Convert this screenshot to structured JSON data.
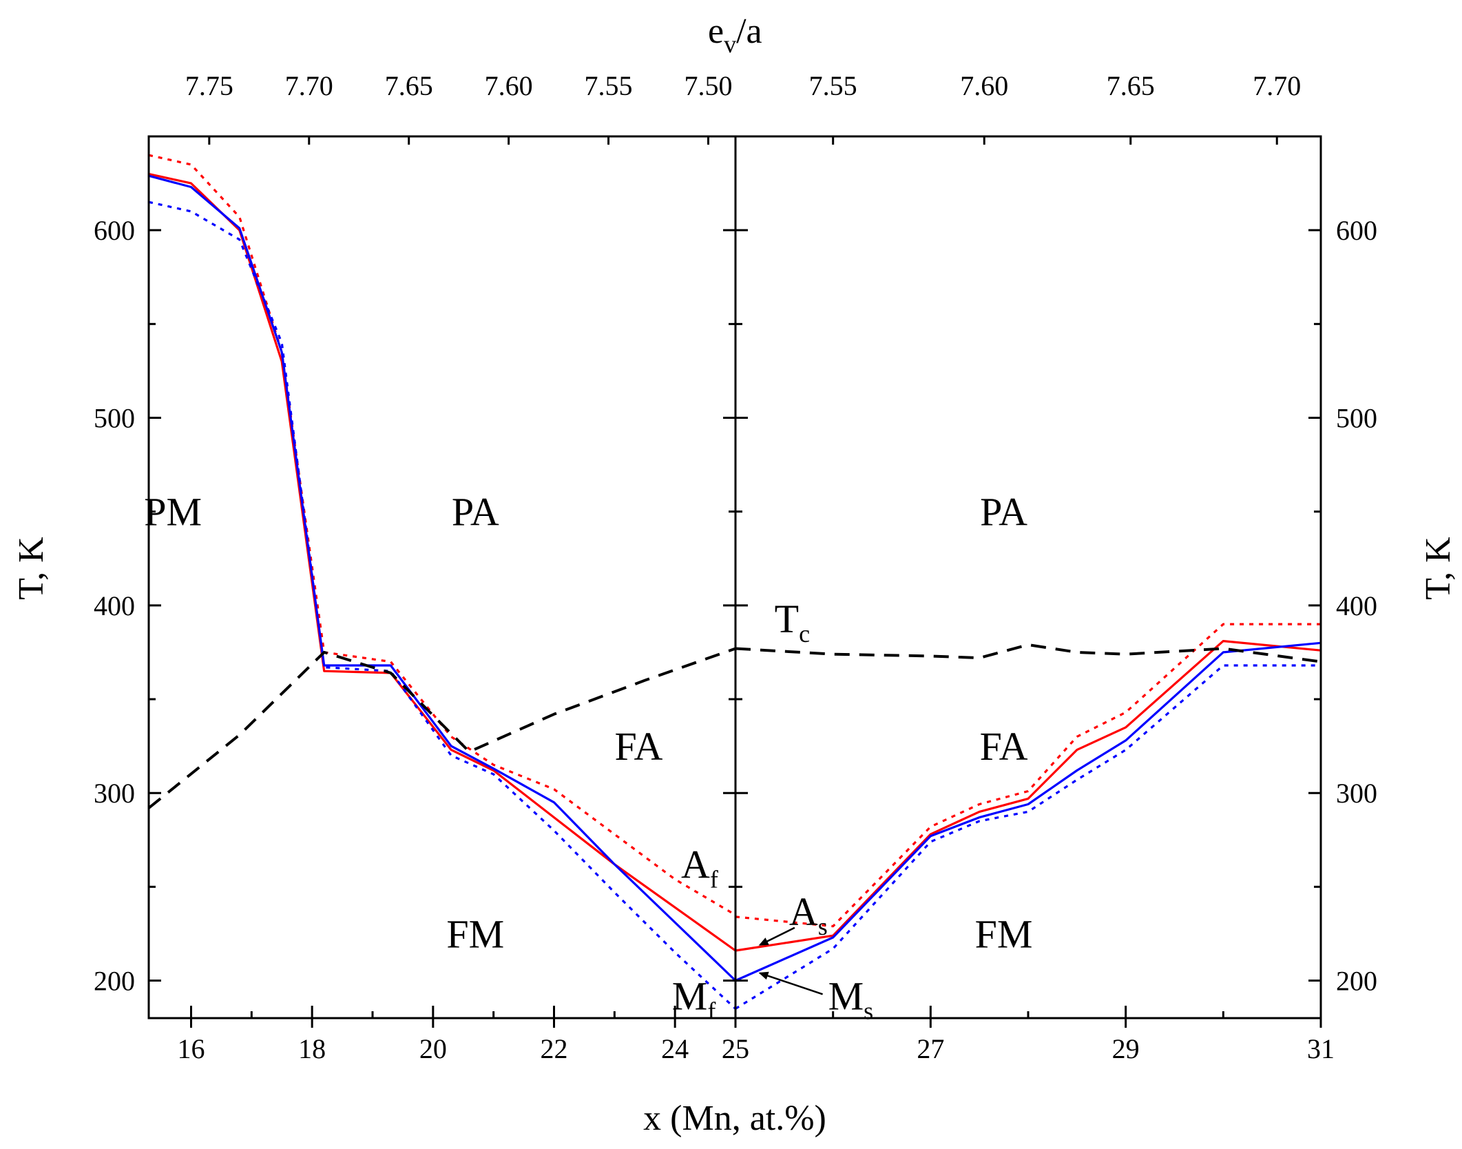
{
  "chart_data": {
    "type": "line",
    "title": "",
    "xlabel": "x (Mn, at.%)",
    "ylabel_left": "T, K",
    "ylabel_right": "T, K",
    "top_axis_label": {
      "base": "e",
      "sub": "v",
      "suffix": "/a"
    },
    "ylim": [
      180,
      650
    ],
    "grid": false,
    "legend": "none",
    "panels": [
      {
        "id": "left",
        "xlim": [
          15.3,
          25
        ],
        "x_ticks": [
          16,
          18,
          20,
          22,
          24,
          25
        ],
        "x_minor_ticks": [
          17,
          19,
          21,
          23
        ],
        "top_ticks": [
          {
            "x": 16.3,
            "label": "7.75"
          },
          {
            "x": 17.95,
            "label": "7.70"
          },
          {
            "x": 19.6,
            "label": "7.65"
          },
          {
            "x": 21.25,
            "label": "7.60"
          },
          {
            "x": 22.9,
            "label": "7.55"
          },
          {
            "x": 24.55,
            "label": "7.50"
          }
        ],
        "series": [
          {
            "name": "Af",
            "color": "#ff0000",
            "dash": "dot",
            "x": [
              15.3,
              16.0,
              16.8,
              17.5,
              18.2,
              19.3,
              20.3,
              21.0,
              22.0,
              23.0,
              24.0,
              25.0
            ],
            "y": [
              640,
              635,
              607,
              535,
              375,
              370,
              330,
              315,
              302,
              278,
              254,
              235
            ]
          },
          {
            "name": "As",
            "color": "#ff0000",
            "dash": "solid",
            "x": [
              15.3,
              16.0,
              16.8,
              17.5,
              18.2,
              19.3,
              20.3,
              21.0,
              22.0,
              23.0,
              24.0,
              25.0
            ],
            "y": [
              630,
              625,
              600,
              530,
              365,
              364,
              323,
              312,
              287,
              262,
              239,
              216
            ]
          },
          {
            "name": "Ms",
            "color": "#0000ff",
            "dash": "solid",
            "x": [
              15.3,
              16.0,
              16.8,
              17.5,
              18.2,
              19.3,
              20.3,
              21.0,
              22.0,
              23.0,
              24.0,
              25.0
            ],
            "y": [
              629,
              623,
              601,
              535,
              368,
              368,
              325,
              313,
              295,
              262,
              231,
              200
            ]
          },
          {
            "name": "Mf",
            "color": "#0000ff",
            "dash": "dot",
            "x": [
              15.3,
              16.0,
              16.8,
              17.5,
              18.2,
              19.3,
              20.3,
              21.0,
              22.0,
              23.0,
              24.0,
              25.0
            ],
            "y": [
              615,
              610,
              595,
              540,
              367,
              365,
              320,
              310,
              280,
              247,
              215,
              185
            ]
          },
          {
            "name": "Tc",
            "color": "#000000",
            "dash": "dash",
            "x": [
              15.3,
              16.8,
              18.2,
              19.3,
              20.6,
              22.0,
              23.5,
              25.0
            ],
            "y": [
              292,
              331,
              375,
              364,
              322,
              342,
              360,
              377
            ]
          }
        ],
        "labels": [
          {
            "text": "PM",
            "x": 15.7,
            "y": 450
          },
          {
            "text": "PA",
            "x": 20.7,
            "y": 450
          },
          {
            "text": "FA",
            "x": 23.4,
            "y": 325
          },
          {
            "text": "FM",
            "x": 20.7,
            "y": 225
          }
        ]
      },
      {
        "id": "right",
        "xlim": [
          25,
          31
        ],
        "x_ticks": [
          25,
          27,
          29,
          31
        ],
        "x_minor_ticks": [
          26,
          28,
          30
        ],
        "top_ticks": [
          {
            "x": 26.0,
            "label": "7.55"
          },
          {
            "x": 27.55,
            "label": "7.60"
          },
          {
            "x": 29.05,
            "label": "7.65"
          },
          {
            "x": 30.55,
            "label": "7.70"
          }
        ],
        "series": [
          {
            "name": "Af",
            "color": "#ff0000",
            "dash": "dot",
            "x": [
              25.0,
              26.0,
              27.0,
              27.5,
              28.0,
              28.5,
              29.0,
              30.0,
              31.0
            ],
            "y": [
              234,
              229,
              282,
              294,
              301,
              330,
              343,
              390,
              390
            ]
          },
          {
            "name": "As",
            "color": "#ff0000",
            "dash": "solid",
            "x": [
              25.0,
              26.0,
              27.0,
              27.5,
              28.0,
              28.5,
              29.0,
              30.0,
              31.0
            ],
            "y": [
              216,
              224,
              278,
              290,
              297,
              323,
              335,
              381,
              376
            ]
          },
          {
            "name": "Ms",
            "color": "#0000ff",
            "dash": "solid",
            "x": [
              25.0,
              26.0,
              27.0,
              27.5,
              28.0,
              28.5,
              29.0,
              30.0,
              31.0
            ],
            "y": [
              200,
              223,
              277,
              287,
              294,
              312,
              328,
              375,
              380
            ]
          },
          {
            "name": "Mf",
            "color": "#0000ff",
            "dash": "dot",
            "x": [
              25.0,
              26.0,
              27.0,
              27.5,
              28.0,
              28.5,
              29.0,
              30.0,
              31.0
            ],
            "y": [
              185,
              217,
              274,
              285,
              290,
              307,
              323,
              368,
              368
            ]
          },
          {
            "name": "Tc",
            "color": "#000000",
            "dash": "dash",
            "x": [
              25.0,
              26.0,
              27.0,
              27.5,
              28.0,
              28.5,
              29.0,
              30.0,
              31.0
            ],
            "y": [
              377,
              374,
              373,
              372,
              379,
              375,
              374,
              377,
              370
            ]
          }
        ],
        "labels": [
          {
            "text": "PA",
            "x": 27.75,
            "y": 450
          },
          {
            "text": "FA",
            "x": 27.75,
            "y": 325
          },
          {
            "text": "FM",
            "x": 27.75,
            "y": 225
          }
        ]
      }
    ],
    "y_ticks": [
      200,
      300,
      400,
      500,
      600
    ],
    "y_minor_ticks": [
      250,
      350,
      450,
      550,
      650
    ],
    "curve_labels": [
      {
        "panel": "left",
        "base": "A",
        "sub": "f",
        "x": 24.1,
        "y": 262
      },
      {
        "panel": "left",
        "base": "M",
        "sub": "f",
        "x": 23.95,
        "y": 192
      },
      {
        "panel": "right",
        "base": "A",
        "sub": "s",
        "x": 25.55,
        "y": 237,
        "arrow_to_x": 25.25,
        "arrow_to_y": 219
      },
      {
        "panel": "right",
        "base": "M",
        "sub": "s",
        "x": 25.95,
        "y": 192,
        "arrow_to_x": 25.25,
        "arrow_to_y": 204
      },
      {
        "panel": "right",
        "base": "T",
        "sub": "c",
        "x": 25.4,
        "y": 393
      }
    ]
  }
}
